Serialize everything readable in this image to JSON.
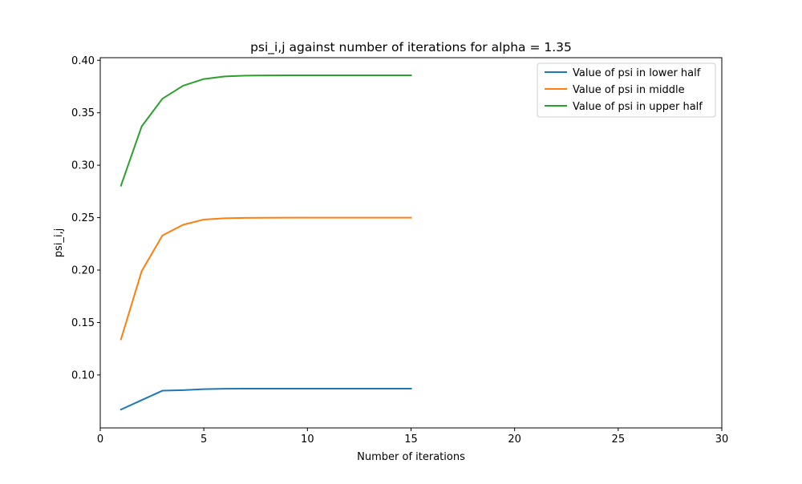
{
  "chart_data": {
    "type": "line",
    "title": "psi_i,j against number of iterations for alpha = 1.35",
    "xlabel": "Number of iterations",
    "ylabel": "psi_i,j",
    "xlim": [
      0,
      30
    ],
    "ylim": [
      0.0495,
      0.4025
    ],
    "xticks": [
      0,
      5,
      10,
      15,
      20,
      25,
      30
    ],
    "xtick_labels": [
      "0",
      "5",
      "10",
      "15",
      "20",
      "25",
      "30"
    ],
    "yticks": [
      0.1,
      0.15,
      0.2,
      0.25,
      0.3,
      0.35,
      0.4
    ],
    "ytick_labels": [
      "0.10",
      "0.15",
      "0.20",
      "0.25",
      "0.30",
      "0.35",
      "0.40"
    ],
    "grid": false,
    "legend_position": "top-right",
    "x": [
      1,
      2,
      3,
      4,
      5,
      6,
      7,
      8,
      9,
      10,
      11,
      12,
      13,
      14,
      15
    ],
    "series": [
      {
        "name": "Value of psi in lower half",
        "color": "#1f77b4",
        "values": [
          0.067,
          0.076,
          0.085,
          0.0855,
          0.0865,
          0.0868,
          0.0869,
          0.0869,
          0.0869,
          0.0869,
          0.0869,
          0.0869,
          0.0869,
          0.0869,
          0.0869
        ]
      },
      {
        "name": "Value of psi in middle",
        "color": "#ff7f0e",
        "values": [
          0.134,
          0.199,
          0.233,
          0.2432,
          0.2482,
          0.2494,
          0.2498,
          0.2499,
          0.25,
          0.25,
          0.25,
          0.25,
          0.25,
          0.25,
          0.25
        ]
      },
      {
        "name": "Value of psi in upper half",
        "color": "#2ca02c",
        "values": [
          0.2805,
          0.337,
          0.3634,
          0.3758,
          0.3822,
          0.3846,
          0.3854,
          0.3856,
          0.3857,
          0.3857,
          0.3857,
          0.3857,
          0.3857,
          0.3857,
          0.3857
        ]
      }
    ]
  }
}
